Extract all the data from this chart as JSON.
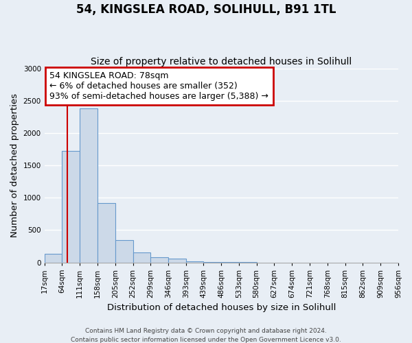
{
  "title": "54, KINGSLEA ROAD, SOLIHULL, B91 1TL",
  "subtitle": "Size of property relative to detached houses in Solihull",
  "xlabel": "Distribution of detached houses by size in Solihull",
  "ylabel": "Number of detached properties",
  "bin_edges": [
    17,
    64,
    111,
    158,
    205,
    252,
    299,
    346,
    393,
    439,
    486,
    533,
    580,
    627,
    674,
    721,
    768,
    815,
    862,
    909,
    956
  ],
  "bar_heights": [
    130,
    1720,
    2380,
    920,
    350,
    155,
    80,
    55,
    20,
    8,
    3,
    1,
    0,
    0,
    0,
    0,
    0,
    0,
    0,
    0
  ],
  "bar_color": "#ccd9e8",
  "bar_edge_color": "#6699cc",
  "bar_edge_width": 0.8,
  "red_line_x": 78,
  "red_line_color": "#cc0000",
  "ylim": [
    0,
    3000
  ],
  "yticks": [
    0,
    500,
    1000,
    1500,
    2000,
    2500,
    3000
  ],
  "annotation_line1": "54 KINGSLEA ROAD: 78sqm",
  "annotation_line2": "← 6% of detached houses are smaller (352)",
  "annotation_line3": "93% of semi-detached houses are larger (5,388) →",
  "annotation_box_color": "#ffffff",
  "annotation_box_edge_color": "#cc0000",
  "background_color": "#e8eef5",
  "grid_color": "#ffffff",
  "footer_line1": "Contains HM Land Registry data © Crown copyright and database right 2024.",
  "footer_line2": "Contains public sector information licensed under the Open Government Licence v3.0.",
  "title_fontsize": 12,
  "subtitle_fontsize": 10,
  "label_fontsize": 9.5,
  "tick_fontsize": 7.5,
  "annotation_fontsize": 9,
  "footer_fontsize": 6.5
}
